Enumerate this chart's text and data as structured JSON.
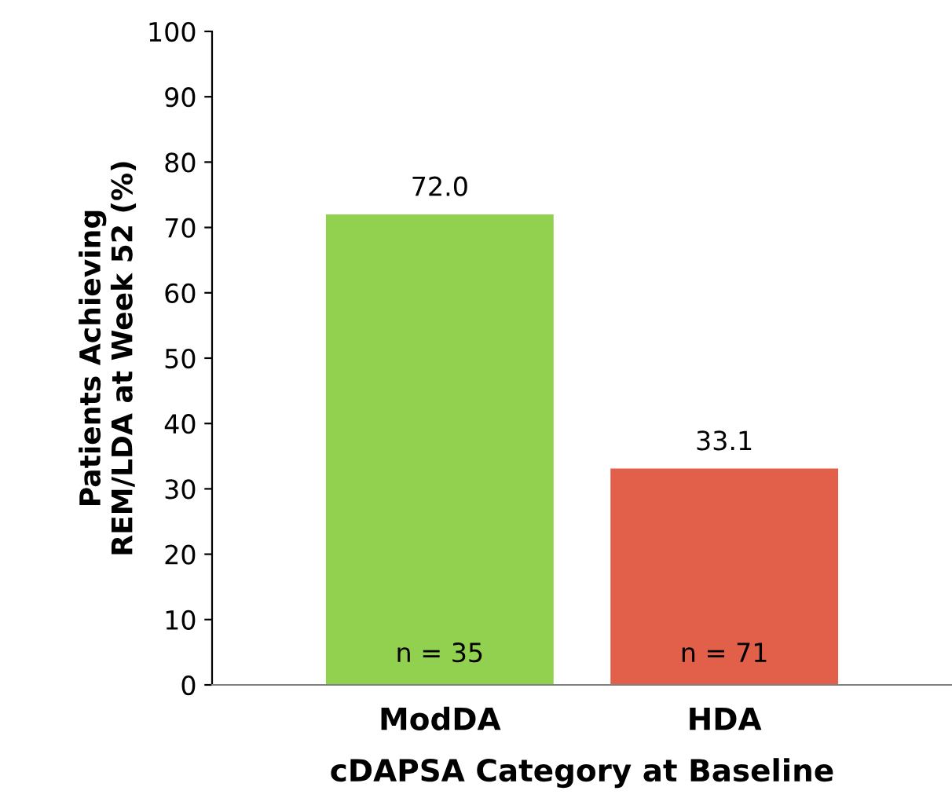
{
  "chart_data": {
    "type": "bar",
    "ylabel": "Patients Achieving\nREM/LDA at Week 52 (%)",
    "xlabel": "cDAPSA Category at Baseline",
    "categories": [
      "ModDA",
      "HDA"
    ],
    "values": [
      72.0,
      33.1
    ],
    "colors": [
      "#92d050",
      "#e2604a"
    ],
    "value_labels": [
      "72.0",
      "33.1"
    ],
    "ylim": [
      0,
      100
    ],
    "yticks": [
      0,
      10,
      20,
      30,
      40,
      50,
      60,
      70,
      80,
      90,
      100
    ],
    "grid": false,
    "legend": false,
    "annotations": [
      "n = 35",
      "n = 71"
    ]
  }
}
